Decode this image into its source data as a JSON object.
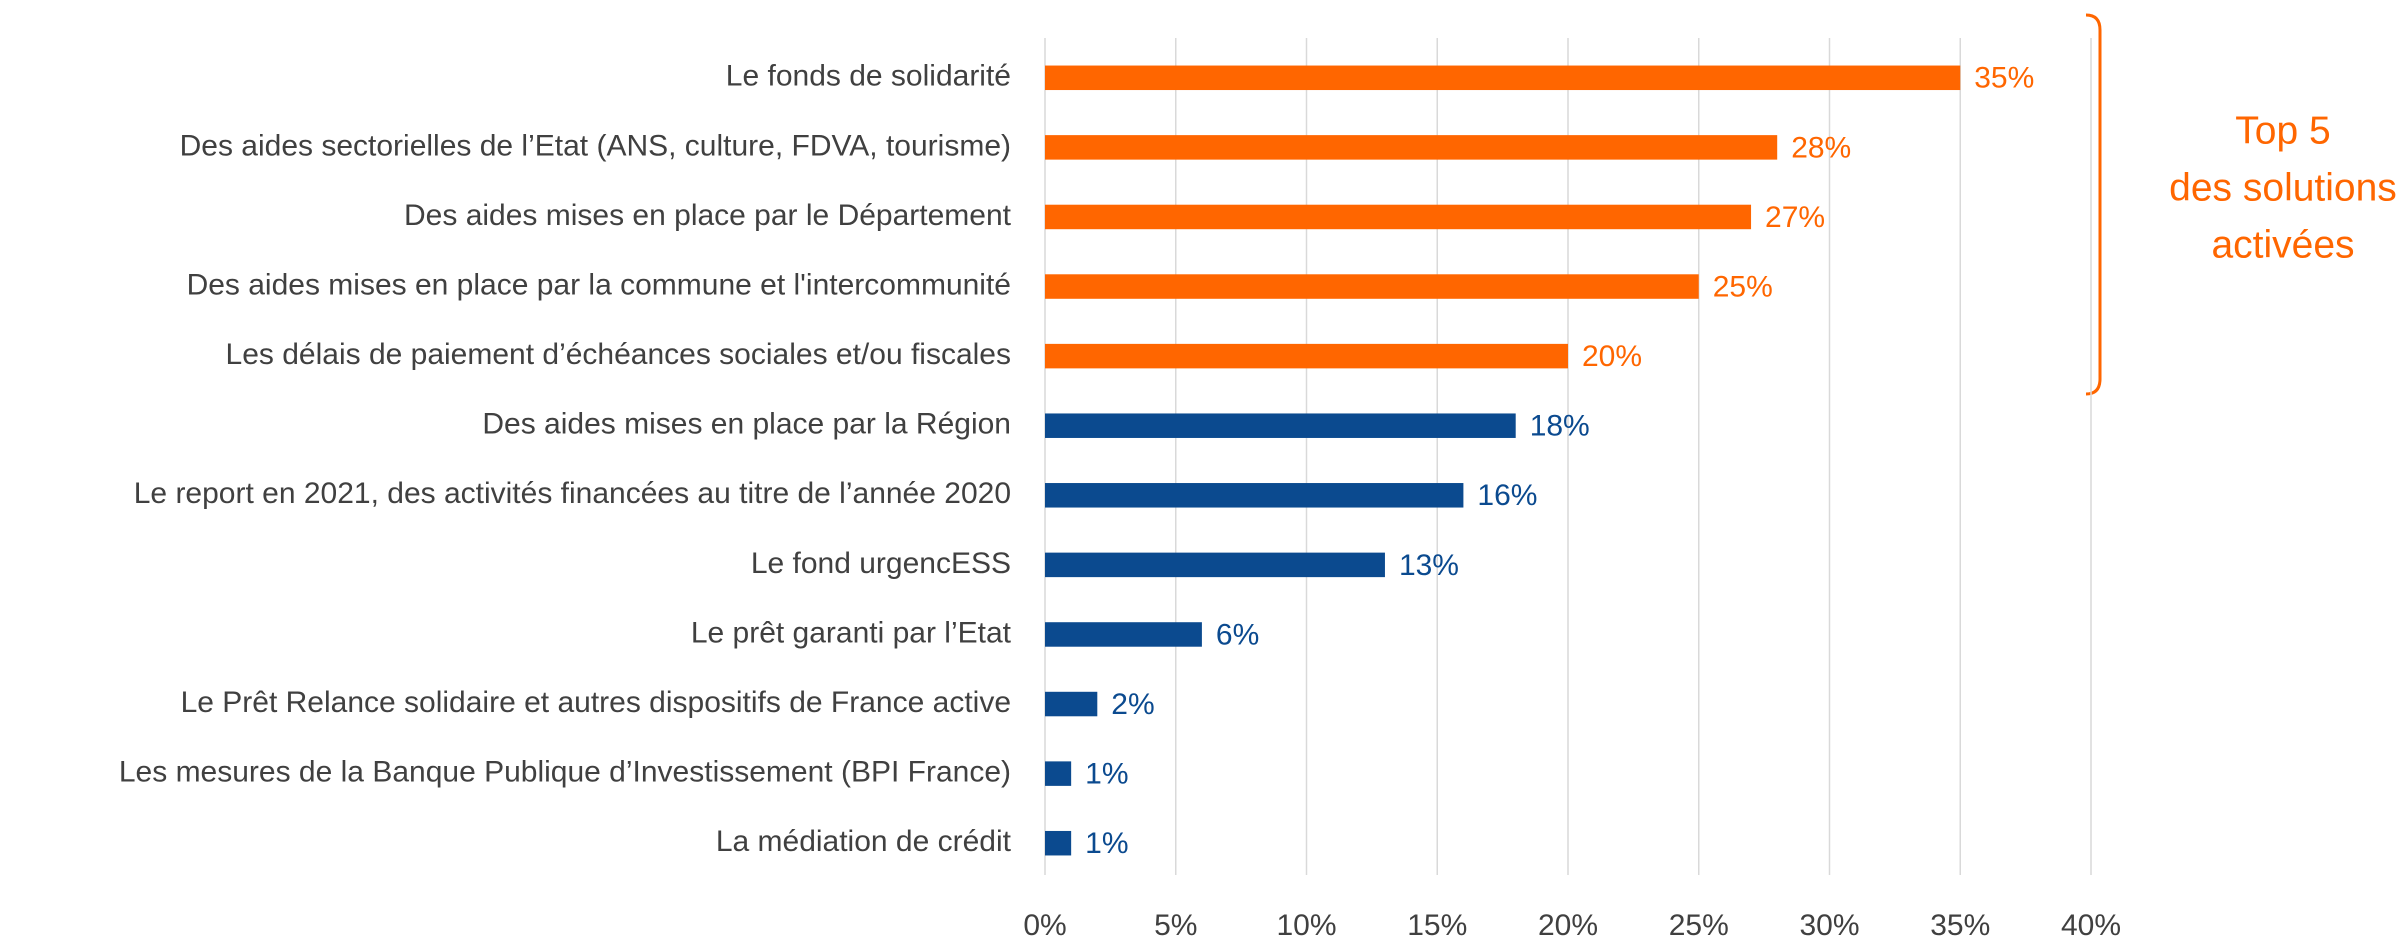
{
  "chart_data": {
    "type": "barh",
    "categories": [
      "Le fonds de solidarité",
      "Des aides sectorielles de l’Etat (ANS, culture, FDVA, tourisme)",
      "Des aides mises en place par le Département",
      "Des aides mises en place par la commune et l'intercommunité",
      "Les délais de paiement d’échéances sociales et/ou fiscales",
      "Des aides mises en place par la Région",
      "Le report en 2021, des activités financées au titre de l’année 2020",
      "Le fond urgencESS",
      "Le prêt garanti par l’Etat",
      "Le Prêt Relance solidaire et autres dispositifs de France active",
      "Les mesures de la Banque Publique d’Investissement (BPI France)",
      "La médiation de crédit"
    ],
    "values": [
      35,
      28,
      27,
      25,
      20,
      18,
      16,
      13,
      6,
      2,
      1,
      1
    ],
    "value_labels": [
      "35%",
      "28%",
      "27%",
      "25%",
      "20%",
      "18%",
      "16%",
      "13%",
      "6%",
      "2%",
      "1%",
      "1%"
    ],
    "colors": [
      "#ff6600",
      "#ff6600",
      "#ff6600",
      "#ff6600",
      "#ff6600",
      "#0b4a8f",
      "#0b4a8f",
      "#0b4a8f",
      "#0b4a8f",
      "#0b4a8f",
      "#0b4a8f",
      "#0b4a8f"
    ],
    "xlim": [
      0,
      40
    ],
    "xticks": [
      {
        "value": 0,
        "label": "0%"
      },
      {
        "value": 5,
        "label": "5%"
      },
      {
        "value": 10,
        "label": "10%"
      },
      {
        "value": 15,
        "label": "15%"
      },
      {
        "value": 20,
        "label": "20%"
      },
      {
        "value": 25,
        "label": "25%"
      },
      {
        "value": 30,
        "label": "30%"
      },
      {
        "value": 35,
        "label": "35%"
      },
      {
        "value": 40,
        "label": "40%"
      }
    ],
    "grid": true,
    "annotation": [
      "Top 5",
      "des solutions",
      "activées"
    ]
  }
}
